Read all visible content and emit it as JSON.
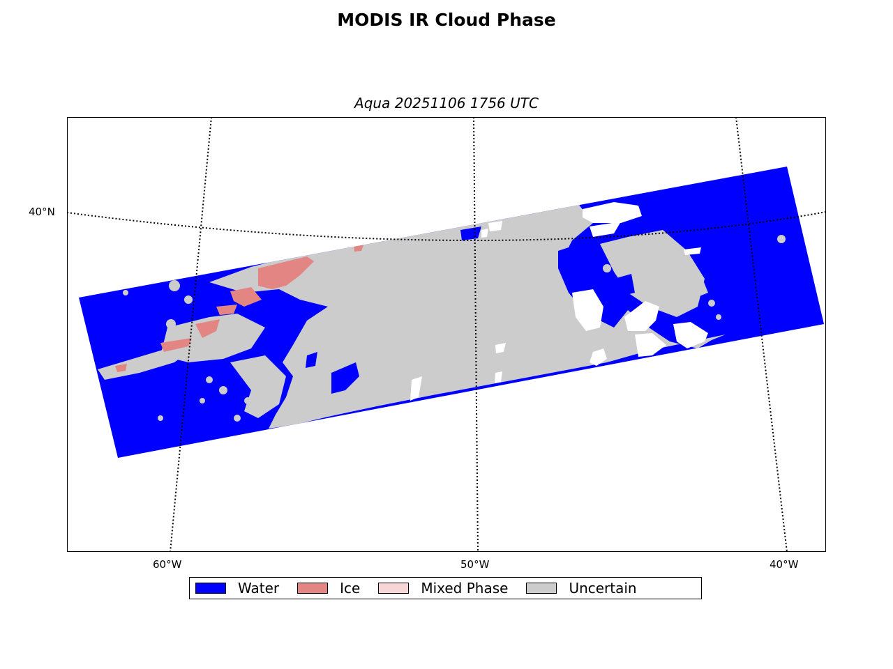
{
  "title": "MODIS IR Cloud Phase",
  "subtitle": "Aqua 20251106 1756 UTC",
  "map": {
    "lat_labels": [
      {
        "label": "40°N",
        "lat": 40
      }
    ],
    "lon_labels": [
      {
        "label": "60°W",
        "lon": -60
      },
      {
        "label": "50°W",
        "lon": -50
      },
      {
        "label": "40°W",
        "lon": -40
      }
    ],
    "background_color": "#ffffff"
  },
  "legend": {
    "items": [
      {
        "label": "Water",
        "color": "#0000ff"
      },
      {
        "label": "Ice",
        "color": "#e38583"
      },
      {
        "label": "Mixed Phase",
        "color": "#f6d6d6"
      },
      {
        "label": "Uncertain",
        "color": "#cccccc"
      }
    ]
  }
}
